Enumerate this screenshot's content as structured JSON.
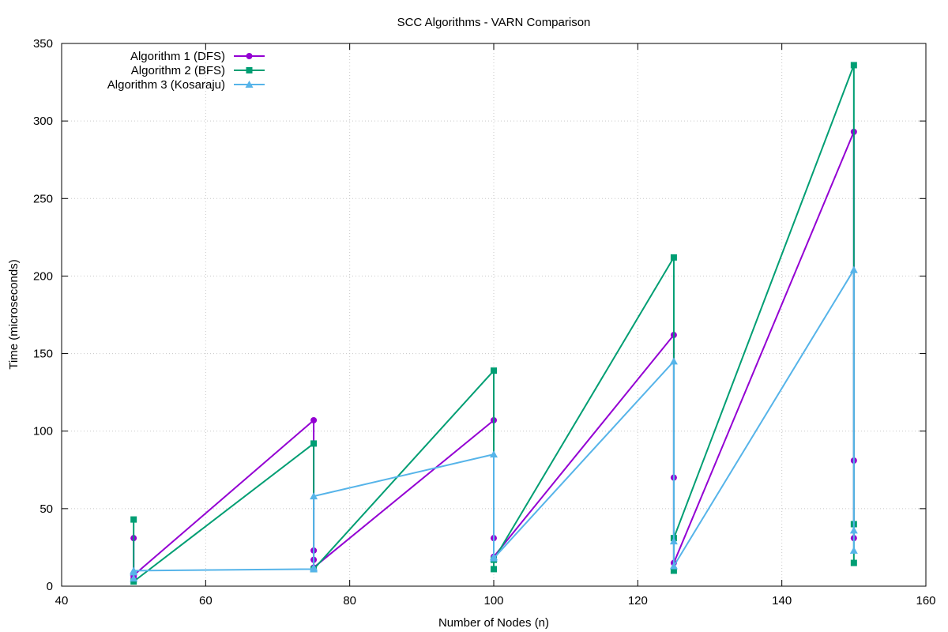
{
  "chart_data": {
    "type": "line",
    "title": "SCC Algorithms - VARN Comparison",
    "xlabel": "Number of Nodes (n)",
    "ylabel": "Time (microseconds)",
    "xlim": [
      40,
      160
    ],
    "ylim": [
      0,
      350
    ],
    "xticks": [
      40,
      60,
      80,
      100,
      120,
      140,
      160
    ],
    "yticks": [
      0,
      50,
      100,
      150,
      200,
      250,
      300,
      350
    ],
    "grid": true,
    "legend_position": "top-left",
    "series": [
      {
        "name": "Algorithm 1 (DFS)",
        "color": "#9400d3",
        "marker": "circle",
        "points": [
          [
            50,
            31
          ],
          [
            50,
            6
          ],
          [
            50,
            7
          ],
          [
            75,
            107
          ],
          [
            75,
            23
          ],
          [
            75,
            17
          ],
          [
            75,
            12
          ],
          [
            100,
            107
          ],
          [
            100,
            31
          ],
          [
            100,
            19
          ],
          [
            125,
            162
          ],
          [
            125,
            70
          ],
          [
            125,
            15
          ],
          [
            150,
            293
          ],
          [
            150,
            81
          ],
          [
            150,
            31
          ]
        ]
      },
      {
        "name": "Algorithm 2 (BFS)",
        "color": "#009e73",
        "marker": "square",
        "points": [
          [
            50,
            43
          ],
          [
            50,
            3
          ],
          [
            75,
            92
          ],
          [
            75,
            11
          ],
          [
            100,
            139
          ],
          [
            100,
            11
          ],
          [
            100,
            17
          ],
          [
            125,
            212
          ],
          [
            125,
            10
          ],
          [
            125,
            31
          ],
          [
            150,
            336
          ],
          [
            150,
            15
          ],
          [
            150,
            40
          ]
        ]
      },
      {
        "name": "Algorithm 3 (Kosaraju)",
        "color": "#56b4e9",
        "marker": "triangle",
        "points": [
          [
            50,
            5
          ],
          [
            50,
            9
          ],
          [
            50,
            10
          ],
          [
            75,
            11
          ],
          [
            75,
            12
          ],
          [
            75,
            58
          ],
          [
            100,
            85
          ],
          [
            100,
            19
          ],
          [
            100,
            18
          ],
          [
            125,
            145
          ],
          [
            125,
            29
          ],
          [
            125,
            13
          ],
          [
            150,
            204
          ],
          [
            150,
            36
          ],
          [
            150,
            23
          ]
        ]
      }
    ]
  }
}
